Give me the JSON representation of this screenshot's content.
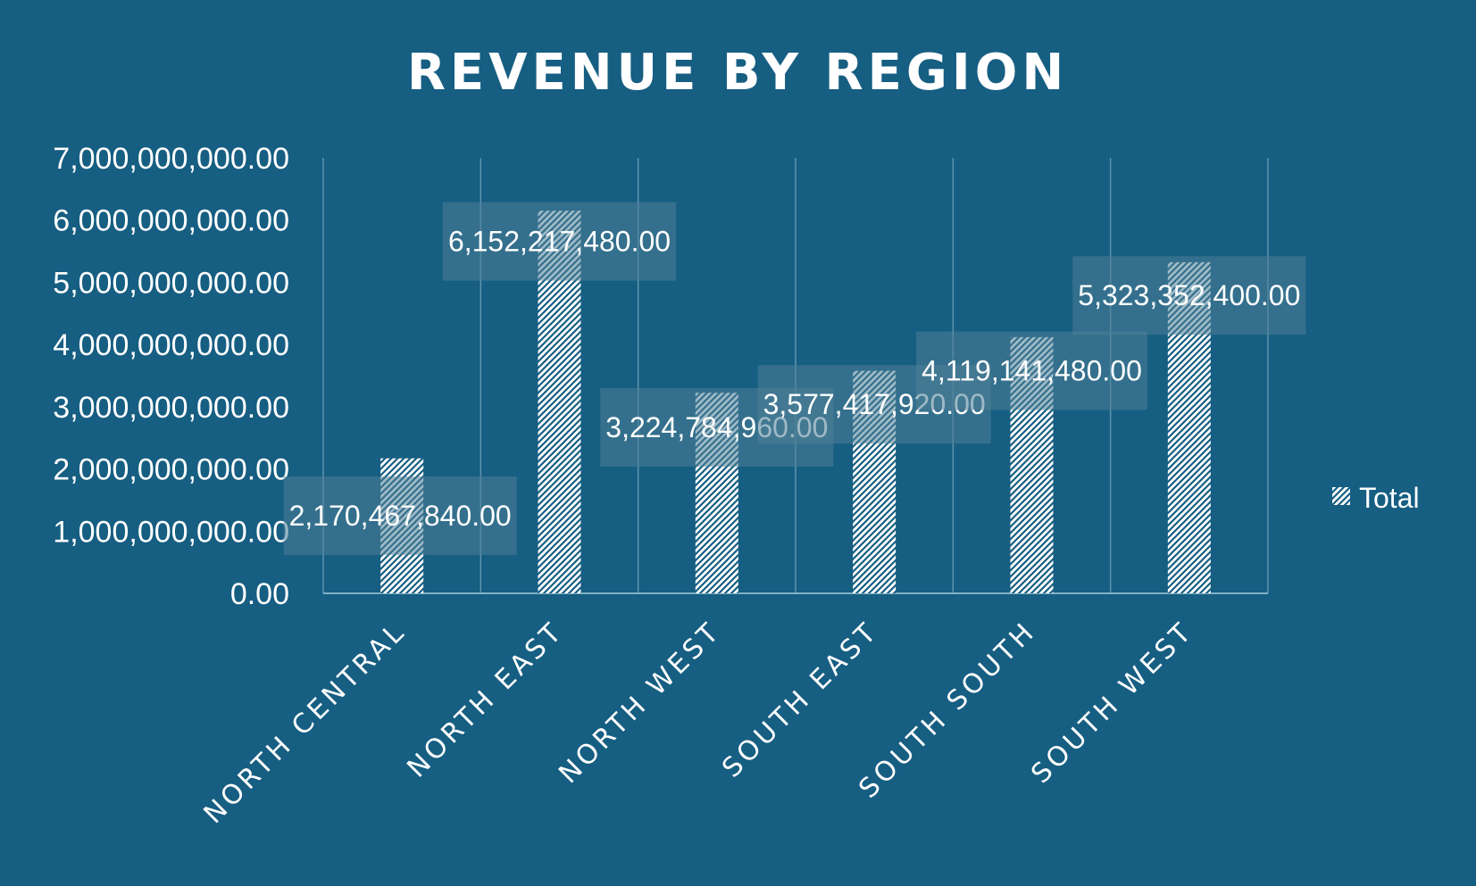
{
  "colors": {
    "background": "#165e82",
    "text": "#ffffff",
    "gridline": "#5f93ae",
    "axis_line": "#7fb0c8",
    "label_box": "#4f7f98",
    "bar_pattern_bg": "#ffffff",
    "bar_pattern_fg": "#165e82"
  },
  "chart_data": {
    "type": "bar",
    "title": "REVENUE BY REGION",
    "xlabel": "",
    "ylabel": "",
    "ylim": [
      0,
      7000000000
    ],
    "y_ticks": [
      0,
      1000000000,
      2000000000,
      3000000000,
      4000000000,
      5000000000,
      6000000000,
      7000000000
    ],
    "y_tick_labels": [
      "0.00",
      "1,000,000,000.00",
      "2,000,000,000.00",
      "3,000,000,000.00",
      "4,000,000,000.00",
      "5,000,000,000.00",
      "6,000,000,000.00",
      "7,000,000,000.00"
    ],
    "categories": [
      "NORTH CENTRAL",
      "NORTH EAST",
      "NORTH WEST",
      "SOUTH EAST",
      "SOUTH SOUTH",
      "SOUTH WEST"
    ],
    "series": [
      {
        "name": "Total",
        "values": [
          2170467840,
          6152217480,
          3224784960,
          3577417920,
          4119141480,
          5323352400
        ],
        "data_labels": [
          "2,170,467,840.00",
          "6,152,217,480.00",
          "3,224,784,960.00",
          "3,577,417,920.00",
          "4,119,141,480.00",
          "5,323,352,400.00"
        ]
      }
    ],
    "grid": "vertical-category-lines",
    "legend": "right",
    "bar_fill": "diagonal-hatch"
  }
}
